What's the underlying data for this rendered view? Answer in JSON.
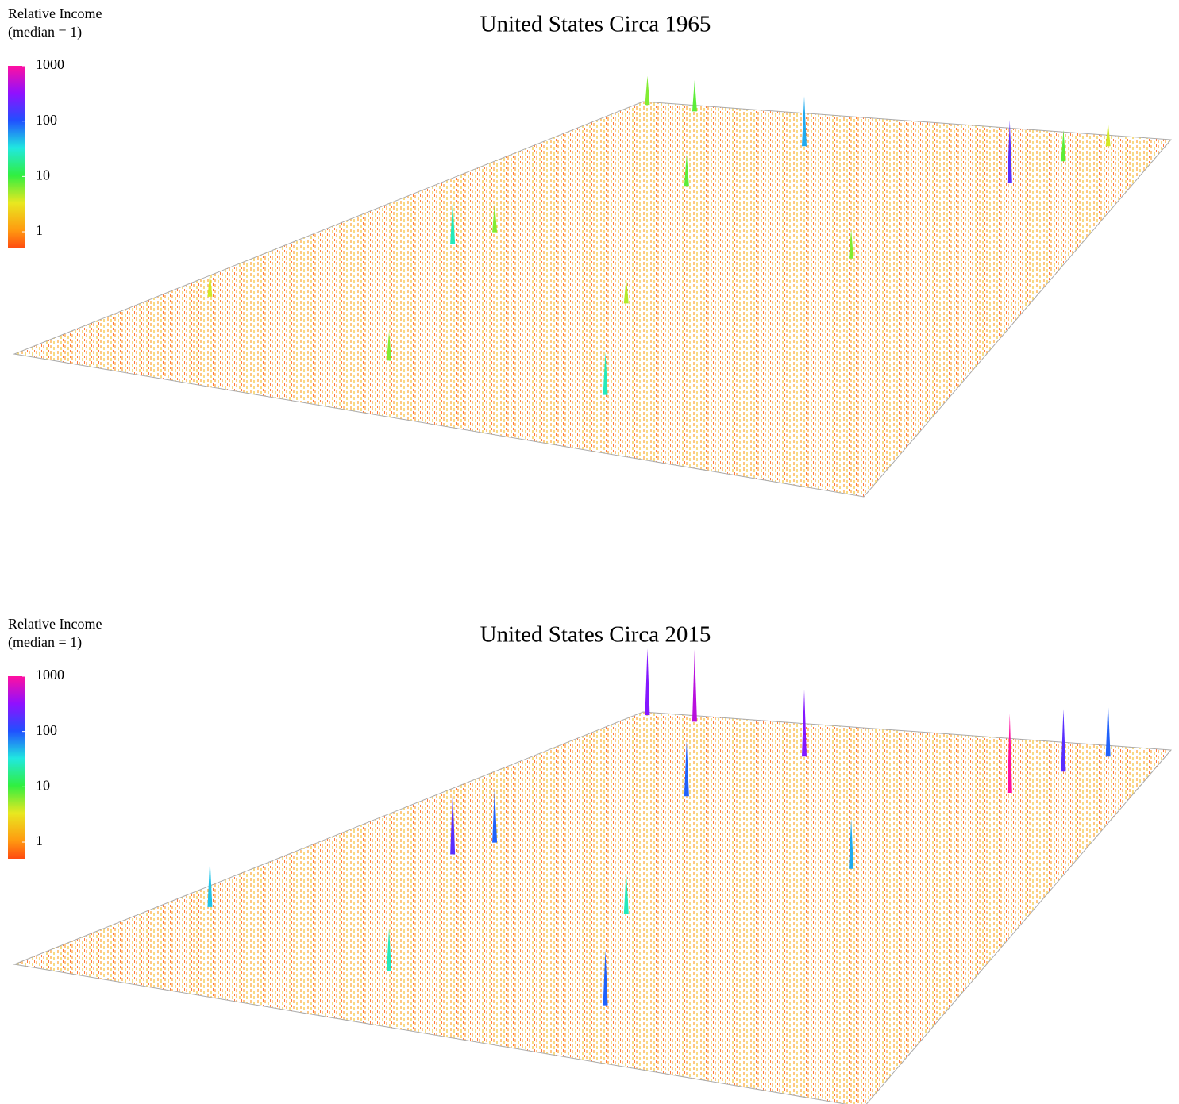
{
  "chart_data": [
    {
      "type": "spike-map",
      "title": "United States Circa 1965",
      "colorbar": {
        "label": [
          "Relative Income",
          "(median = 1)"
        ],
        "clim": [
          0.5,
          1000
        ],
        "ticks": [
          1,
          10,
          100,
          1000
        ],
        "log": true
      },
      "x": [
        0.8,
        0.02,
        0.12,
        0.2,
        0.18,
        0.33,
        0.4,
        0.85,
        0.9,
        0.62,
        0.35,
        0.05,
        0.5,
        0.7
      ],
      "y": [
        0.15,
        0.01,
        0.02,
        0.45,
        0.5,
        0.25,
        0.1,
        0.08,
        0.03,
        0.85,
        0.85,
        0.75,
        0.6,
        0.4
      ],
      "values": [
        200,
        8,
        10,
        8,
        30,
        10,
        60,
        10,
        5,
        30,
        8,
        5,
        6,
        8
      ]
    },
    {
      "type": "spike-map",
      "title": "United States Circa 2015",
      "colorbar": {
        "label": [
          "Relative Income",
          "(median = 1)"
        ],
        "clim": [
          0.5,
          1000
        ],
        "ticks": [
          1,
          10,
          100,
          1000
        ],
        "log": true
      },
      "x": [
        0.8,
        0.02,
        0.12,
        0.2,
        0.18,
        0.33,
        0.4,
        0.85,
        0.9,
        0.62,
        0.35,
        0.05,
        0.5,
        0.7
      ],
      "y": [
        0.15,
        0.01,
        0.02,
        0.45,
        0.5,
        0.25,
        0.1,
        0.08,
        0.03,
        0.85,
        0.85,
        0.75,
        0.6,
        0.4
      ],
      "values": [
        1000,
        300,
        500,
        100,
        200,
        100,
        300,
        200,
        100,
        100,
        30,
        50,
        30,
        60
      ]
    }
  ]
}
